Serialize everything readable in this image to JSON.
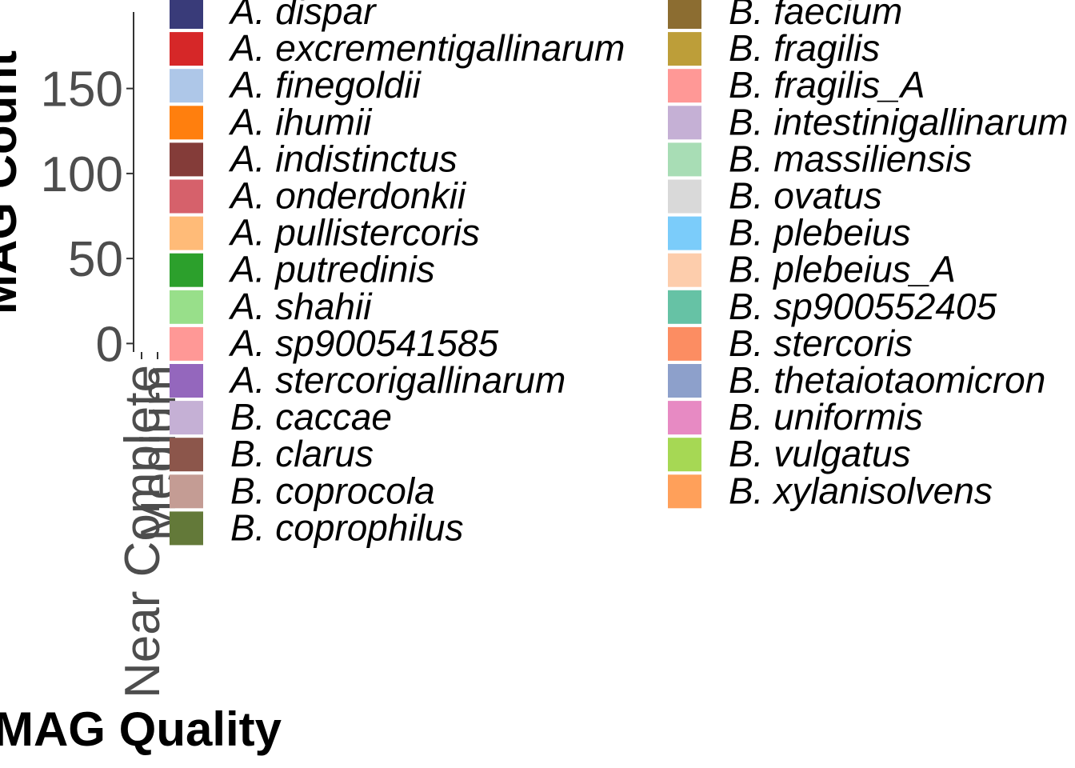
{
  "chart_data": {
    "type": "bar",
    "title": "",
    "xlabel": "MAG Quality",
    "ylabel": "MAG Count",
    "ylim": [
      -5,
      195
    ],
    "y_ticks": [
      0,
      50,
      100,
      150
    ],
    "categories": [
      "Near Complete",
      "Medium"
    ],
    "series": [],
    "grid": false,
    "legend_position": "right",
    "legend": [
      {
        "label": "A. dispar",
        "color": "#393B79"
      },
      {
        "label": "A. excrementigallinarum",
        "color": "#D62728"
      },
      {
        "label": "A. finegoldii",
        "color": "#AEC7E8"
      },
      {
        "label": "A. ihumii",
        "color": "#FF7F0E"
      },
      {
        "label": "A. indistinctus",
        "color": "#843C39"
      },
      {
        "label": "A. onderdonkii",
        "color": "#D6616B"
      },
      {
        "label": "A. pullistercoris",
        "color": "#FFBB78"
      },
      {
        "label": "A. putredinis",
        "color": "#2CA02C"
      },
      {
        "label": "A. shahii",
        "color": "#98DF8A"
      },
      {
        "label": "A. sp900541585",
        "color": "#FF9896"
      },
      {
        "label": "A. stercorigallinarum",
        "color": "#9467BD"
      },
      {
        "label": "B. caccae",
        "color": "#C5B0D5"
      },
      {
        "label": "B. clarus",
        "color": "#8C564B"
      },
      {
        "label": "B. coprocola",
        "color": "#C49C94"
      },
      {
        "label": "B. coprophilus",
        "color": "#637939"
      },
      {
        "label": "B. faecium",
        "color": "#8C6D31"
      },
      {
        "label": "B. fragilis",
        "color": "#BD9E39"
      },
      {
        "label": "B. fragilis_A",
        "color": "#FF9896"
      },
      {
        "label": "B. intestinigallinarum",
        "color": "#C5B0D5"
      },
      {
        "label": "B. massiliensis",
        "color": "#A8DDB5"
      },
      {
        "label": "B. ovatus",
        "color": "#D9D9D9"
      },
      {
        "label": "B. plebeius",
        "color": "#7BCCFA"
      },
      {
        "label": "B. plebeius_A",
        "color": "#FDCDAC"
      },
      {
        "label": "B. sp900552405",
        "color": "#66C2A5"
      },
      {
        "label": "B. stercoris",
        "color": "#FC8D62"
      },
      {
        "label": "B. thetaiotaomicron",
        "color": "#8DA0CB"
      },
      {
        "label": "B. uniformis",
        "color": "#E78AC3"
      },
      {
        "label": "B. vulgatus",
        "color": "#A6D854"
      },
      {
        "label": "B. xylanisolvens",
        "color": "#FFA05A"
      }
    ]
  }
}
